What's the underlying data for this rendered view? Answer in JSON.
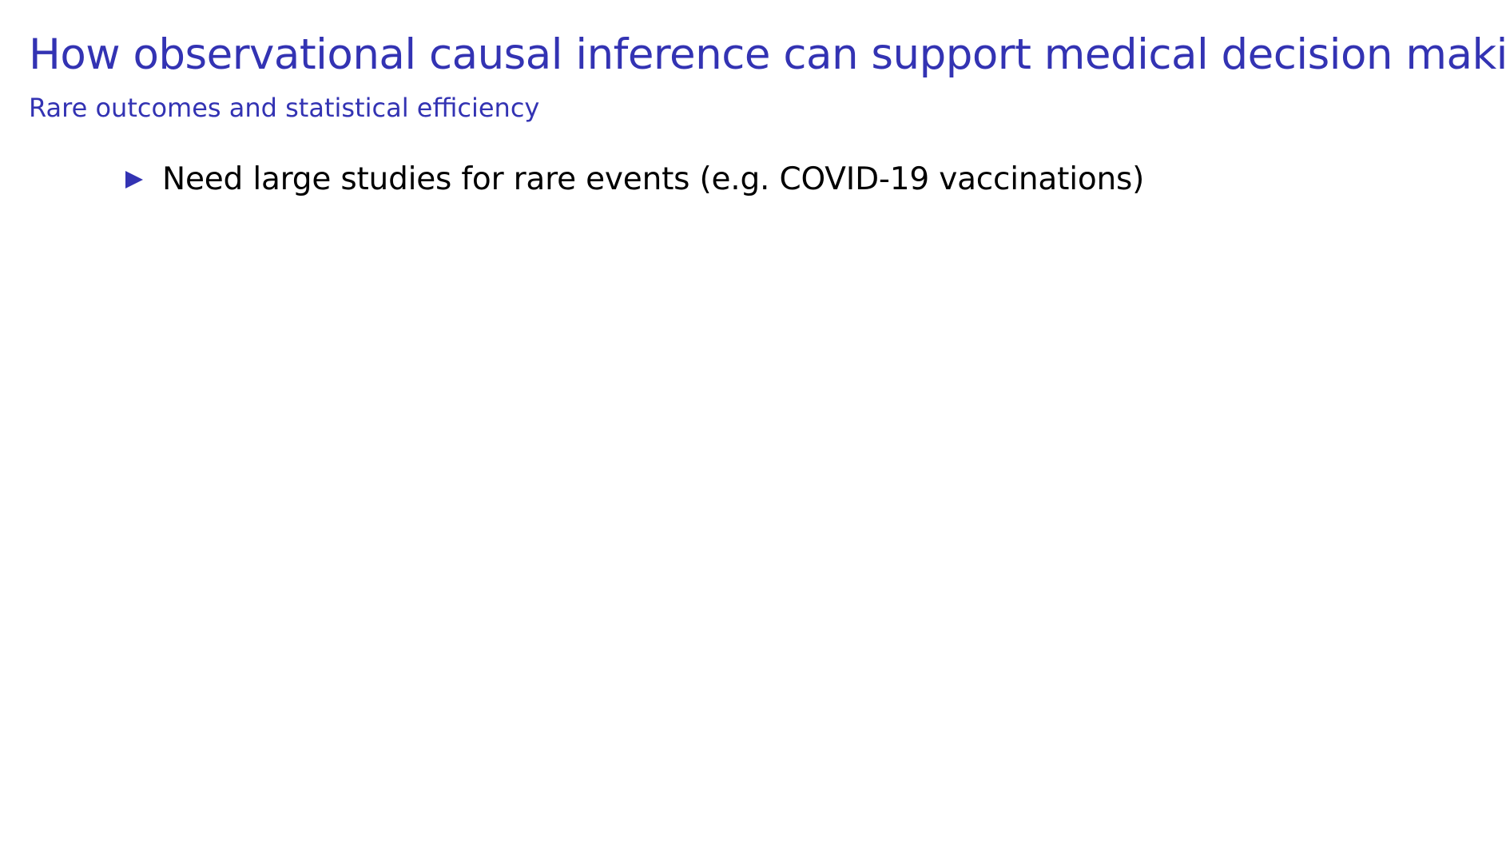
{
  "slide": {
    "title": "How observational causal inference can support medical decision making",
    "subtitle": "Rare outcomes and statistical efficiency",
    "bullets": [
      {
        "text": "Need large studies for rare events (e.g.  COVID-19 vaccinations)"
      }
    ]
  },
  "colors": {
    "accent": "#3333b3",
    "body_text": "#000000",
    "background": "#ffffff"
  },
  "icons": {
    "bullet": "triangle-right-icon"
  }
}
